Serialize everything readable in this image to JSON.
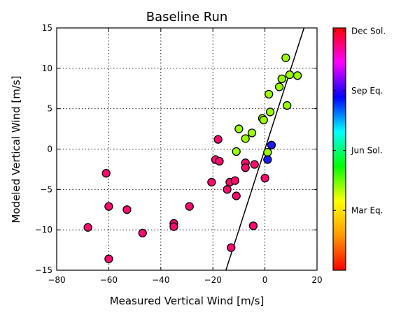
{
  "chart_data": {
    "type": "scatter",
    "title": "Baseline Run",
    "xlabel": "Measured Vertical Wind [m/s]",
    "ylabel": "Modeled Vertical Wind [m/s]",
    "xlim": [
      -80,
      20
    ],
    "ylim": [
      -15,
      15
    ],
    "xticks": [
      -80,
      -60,
      -40,
      -20,
      0,
      20
    ],
    "yticks": [
      -15,
      -10,
      -5,
      0,
      5,
      10,
      15
    ],
    "xtick_labels": [
      "−80",
      "−60",
      "−40",
      "−20",
      "0",
      "20"
    ],
    "ytick_labels": [
      "−15",
      "−10",
      "−5",
      "0",
      "5",
      "10",
      "15"
    ],
    "grid": true,
    "reference_line": {
      "x1": -15,
      "y1": -15,
      "x2": 15,
      "y2": 15
    },
    "colorbar": {
      "labels": [
        "Dec Sol.",
        "Sep Eq.",
        "Jun Sol.",
        "Mar Eq."
      ],
      "colors": [
        "#ff0000",
        "#ff9900",
        "#ffff00",
        "#00ff00",
        "#00ffff",
        "#0000ff",
        "#ff00ff",
        "#ff0000"
      ]
    },
    "series": [
      {
        "color": "#ff0a6e",
        "points": [
          [
            -68,
            -9.7
          ],
          [
            -61,
            -3
          ],
          [
            -60,
            -13.6
          ],
          [
            -60,
            -7.1
          ],
          [
            -53,
            -7.5
          ],
          [
            -47,
            -10.4
          ],
          [
            -35,
            -9.2
          ],
          [
            -35,
            -9.6
          ],
          [
            -29,
            -7.1
          ],
          [
            -20.5,
            -4.1
          ],
          [
            -19,
            -1.3
          ],
          [
            -18,
            1.2
          ],
          [
            -17.5,
            -1.5
          ],
          [
            -14.5,
            -5
          ],
          [
            -13.5,
            -4.1
          ],
          [
            -13,
            -12.2
          ],
          [
            -11.5,
            -3.9
          ],
          [
            -11,
            -5.8
          ],
          [
            -7.5,
            -1.7
          ],
          [
            -7.5,
            -2.3
          ],
          [
            -4.5,
            -9.5
          ],
          [
            -4,
            -1.9
          ],
          [
            0,
            -3.6
          ]
        ]
      },
      {
        "color": "#99ff00",
        "points": [
          [
            -11,
            -0.3
          ],
          [
            -10,
            2.5
          ],
          [
            -7.5,
            1.3
          ],
          [
            -5,
            2
          ],
          [
            -1,
            3.8
          ],
          [
            -0.5,
            3.6
          ],
          [
            1,
            -0.4
          ],
          [
            1.5,
            6.8
          ],
          [
            2,
            4.6
          ],
          [
            5.5,
            7.7
          ],
          [
            6.5,
            8.7
          ],
          [
            8,
            11.3
          ],
          [
            8.5,
            5.4
          ],
          [
            9.5,
            9.2
          ],
          [
            12.5,
            9.1
          ]
        ]
      },
      {
        "color": "#1a1aff",
        "points": [
          [
            1,
            -1.3
          ],
          [
            2.5,
            0.5
          ]
        ]
      }
    ]
  }
}
